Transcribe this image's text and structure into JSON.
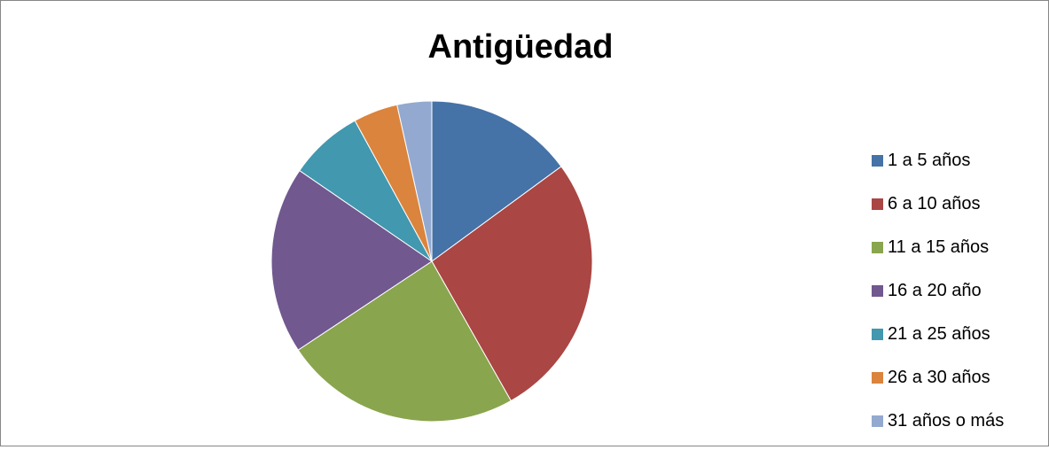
{
  "chart_data": {
    "type": "pie",
    "title": "Antigüedad",
    "categories": [
      "1 a 5 años",
      "6 a 10 años",
      "11 a 15 años",
      "16 a 20 año",
      "21 a 25 años",
      "26 a 30 años",
      "31 años o más"
    ],
    "values": [
      15,
      27,
      24,
      19,
      7.5,
      4.5,
      3.5
    ],
    "colors": [
      "#4572A7",
      "#AA4643",
      "#89A54E",
      "#71588F",
      "#4198AF",
      "#DB843D",
      "#93A9CF"
    ],
    "legend_position": "right",
    "start_angle": "12 o'clock",
    "direction": "clockwise"
  }
}
